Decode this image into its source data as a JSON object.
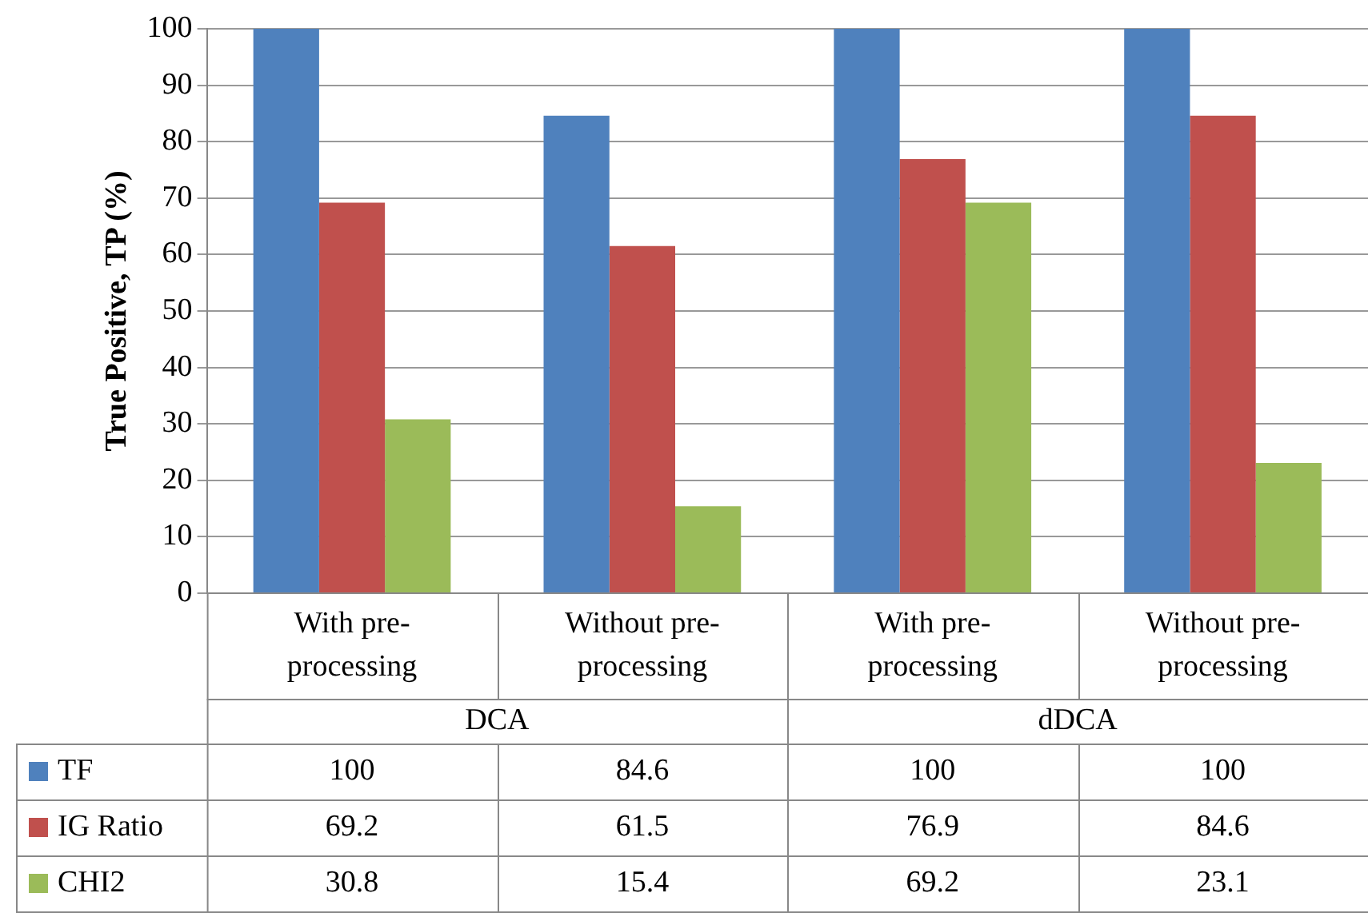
{
  "chart_data": {
    "type": "bar",
    "ylabel": "True Positive, TP (%)",
    "categories": [
      "With pre-processing",
      "Without pre-processing",
      "With pre-processing",
      "Without pre-processing"
    ],
    "annotations": [
      "DCA",
      "dDCA"
    ],
    "series": [
      {
        "name": "TF",
        "color": "#4f81bd",
        "values": [
          100,
          84.6,
          100,
          100
        ]
      },
      {
        "name": "IG Ratio",
        "color": "#c0504d",
        "values": [
          69.2,
          61.5,
          76.9,
          84.6
        ]
      },
      {
        "name": "CHI2",
        "color": "#9bbb59",
        "values": [
          30.8,
          15.4,
          69.2,
          23.1
        ]
      }
    ],
    "ylim": [
      0,
      100
    ],
    "yticks": [
      0,
      10,
      20,
      30,
      40,
      50,
      60,
      70,
      80,
      90,
      100
    ],
    "grid": "y",
    "legend": "bottom",
    "data_labels": true
  }
}
